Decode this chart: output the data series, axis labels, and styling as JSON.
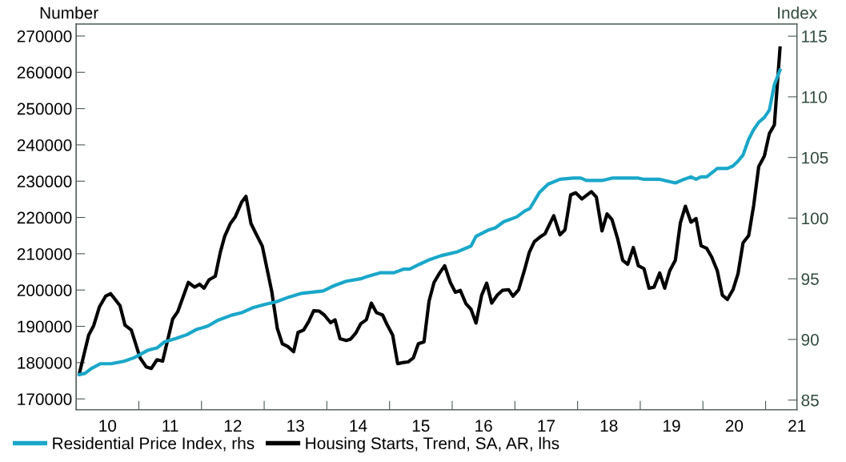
{
  "chart_data": {
    "type": "line",
    "ylabel": "Number",
    "y2label": "Index",
    "xlim": [
      2009.5,
      2021.0
    ],
    "xticks": [
      {
        "value": 2010.5,
        "label": null
      },
      {
        "value": 2011.5,
        "label": null
      },
      {
        "value": 2012.5,
        "label": null
      },
      {
        "value": 2013.5,
        "label": null
      },
      {
        "value": 2014.5,
        "label": null
      },
      {
        "value": 2015.5,
        "label": null
      },
      {
        "value": 2016.5,
        "label": null
      },
      {
        "value": 2017.5,
        "label": null
      },
      {
        "value": 2018.5,
        "label": null
      },
      {
        "value": 2019.5,
        "label": null
      },
      {
        "value": 2020.5,
        "label": null
      },
      {
        "value": 2010,
        "label": "10"
      },
      {
        "value": 2011,
        "label": "11"
      },
      {
        "value": 2012,
        "label": "12"
      },
      {
        "value": 2013,
        "label": "13"
      },
      {
        "value": 2014,
        "label": "14"
      },
      {
        "value": 2015,
        "label": "15"
      },
      {
        "value": 2016,
        "label": "16"
      },
      {
        "value": 2017,
        "label": "17"
      },
      {
        "value": 2018,
        "label": "18"
      },
      {
        "value": 2019,
        "label": "19"
      },
      {
        "value": 2020,
        "label": "20"
      },
      {
        "value": 2021,
        "label": "21"
      }
    ],
    "ylim": [
      167000,
      273300
    ],
    "yticks": [
      170000,
      180000,
      190000,
      200000,
      210000,
      220000,
      230000,
      240000,
      250000,
      260000,
      270000
    ],
    "y2lim": [
      84.2,
      116.0
    ],
    "y2ticks": [
      85,
      90,
      95,
      100,
      105,
      110,
      115
    ],
    "grid": false,
    "legend": "bottom",
    "marker": "none",
    "line_style": "solid",
    "series": [
      {
        "name": "Residential Price Index, rhs",
        "color": "#1aa7c9",
        "axis": "y2",
        "x": [
          2009.55,
          2009.64,
          2009.74,
          2009.89,
          2010.06,
          2010.26,
          2010.43,
          2010.64,
          2010.79,
          2010.91,
          2011.1,
          2011.27,
          2011.41,
          2011.6,
          2011.77,
          2011.98,
          2012.14,
          2012.31,
          2012.52,
          2012.69,
          2012.9,
          2013.1,
          2013.27,
          2013.44,
          2013.56,
          2013.65,
          2013.81,
          2014.04,
          2014.15,
          2014.36,
          2014.57,
          2014.73,
          2014.82,
          2014.98,
          2015.15,
          2015.32,
          2015.57,
          2015.8,
          2015.88,
          2016.07,
          2016.19,
          2016.32,
          2016.53,
          2016.66,
          2016.74,
          2016.89,
          2017.03,
          2017.22,
          2017.43,
          2017.55,
          2017.64,
          2017.89,
          2018.05,
          2018.47,
          2018.56,
          2018.81,
          2019.06,
          2019.2,
          2019.31,
          2019.39,
          2019.47,
          2019.56,
          2019.73,
          2019.89,
          2019.98,
          2020.06,
          2020.14,
          2020.23,
          2020.31,
          2020.39,
          2020.48,
          2020.56,
          2020.64,
          2020.73
        ],
        "values": [
          87.1,
          87.2,
          87.6,
          88.0,
          88.0,
          88.2,
          88.5,
          89.1,
          89.3,
          89.8,
          90.1,
          90.4,
          90.8,
          91.1,
          91.6,
          92.0,
          92.2,
          92.6,
          92.9,
          93.1,
          93.5,
          93.8,
          93.9,
          94.0,
          94.3,
          94.5,
          94.8,
          95.0,
          95.2,
          95.5,
          95.5,
          95.8,
          95.8,
          96.2,
          96.6,
          96.9,
          97.2,
          97.7,
          98.5,
          99.0,
          99.2,
          99.7,
          100.1,
          100.6,
          100.8,
          102.1,
          102.8,
          103.2,
          103.3,
          103.3,
          103.1,
          103.1,
          103.3,
          103.3,
          103.2,
          103.2,
          102.9,
          103.2,
          103.4,
          103.2,
          103.4,
          103.4,
          104.1,
          104.1,
          104.3,
          104.7,
          105.2,
          106.5,
          107.3,
          107.9,
          108.3,
          108.9,
          111.0,
          112.2
        ]
      },
      {
        "name": "Housing Starts, Trend, SA, AR, lhs",
        "color": "#000000",
        "x": [
          2009.55,
          2009.7,
          2009.78,
          2009.87,
          2009.97,
          2010.05,
          2010.2,
          2010.28,
          2010.38,
          2010.52,
          2010.62,
          2010.7,
          2010.79,
          2010.88,
          2011.04,
          2011.12,
          2011.29,
          2011.39,
          2011.47,
          2011.54,
          2011.62,
          2011.72,
          2011.8,
          2011.87,
          2011.96,
          2012.04,
          2012.14,
          2012.21,
          2012.29,
          2012.37,
          2012.47,
          2012.62,
          2012.71,
          2012.79,
          2012.88,
          2012.97,
          2013.04,
          2013.13,
          2013.21,
          2013.29,
          2013.38,
          2013.46,
          2013.56,
          2013.63,
          2013.71,
          2013.81,
          2013.88,
          2013.96,
          2014.04,
          2014.13,
          2014.21,
          2014.29,
          2014.39,
          2014.46,
          2014.55,
          2014.63,
          2014.71,
          2014.8,
          2014.88,
          2014.96,
          2015.05,
          2015.13,
          2015.21,
          2015.3,
          2015.38,
          2015.47,
          2015.55,
          2015.63,
          2015.72,
          2015.8,
          2015.88,
          2015.97,
          2016.05,
          2016.13,
          2016.22,
          2016.3,
          2016.4,
          2016.47,
          2016.56,
          2016.65,
          2016.73,
          2016.81,
          2016.9,
          2016.98,
          2017.05,
          2017.12,
          2017.22,
          2017.3,
          2017.39,
          2017.47,
          2017.57,
          2017.72,
          2017.8,
          2017.89,
          2017.97,
          2018.05,
          2018.14,
          2018.22,
          2018.3,
          2018.39,
          2018.47,
          2018.56,
          2018.64,
          2018.72,
          2018.81,
          2018.89,
          2018.97,
          2019.06,
          2019.14,
          2019.22,
          2019.31,
          2019.39,
          2019.47,
          2019.56,
          2019.64,
          2019.73,
          2019.81,
          2019.89,
          2019.98,
          2020.06,
          2020.14,
          2020.23,
          2020.31,
          2020.39,
          2020.48,
          2020.56,
          2020.64,
          2020.73
        ],
        "values": [
          176900,
          187600,
          190200,
          195300,
          198300,
          199000,
          195700,
          190300,
          189000,
          181300,
          178800,
          178400,
          180800,
          180400,
          192000,
          194000,
          202100,
          200800,
          201600,
          200500,
          202800,
          203800,
          210400,
          214800,
          218300,
          220200,
          224200,
          225800,
          218300,
          215500,
          212100,
          199700,
          189400,
          185200,
          184400,
          183000,
          188300,
          189000,
          191300,
          194300,
          194200,
          193100,
          191000,
          191800,
          186600,
          186100,
          186500,
          188100,
          190700,
          191800,
          196400,
          193800,
          193100,
          190500,
          187600,
          179700,
          180000,
          180200,
          181300,
          185200,
          185700,
          196900,
          202100,
          204700,
          206700,
          202100,
          199400,
          199900,
          196200,
          194700,
          190900,
          198600,
          201900,
          196400,
          198600,
          199900,
          200100,
          198300,
          200100,
          205300,
          210400,
          213300,
          214600,
          215500,
          218000,
          220500,
          215200,
          216600,
          226200,
          226800,
          225100,
          227100,
          225600,
          216300,
          221000,
          219400,
          214100,
          208200,
          207100,
          211700,
          206700,
          205900,
          200500,
          200800,
          204700,
          200500,
          205300,
          208200,
          218500,
          223100,
          218700,
          219700,
          212200,
          211500,
          209100,
          205300,
          198600,
          197400,
          200100,
          204500,
          213000,
          215000,
          223300,
          234000,
          236900,
          243100,
          245500,
          266700
        ]
      }
    ]
  }
}
